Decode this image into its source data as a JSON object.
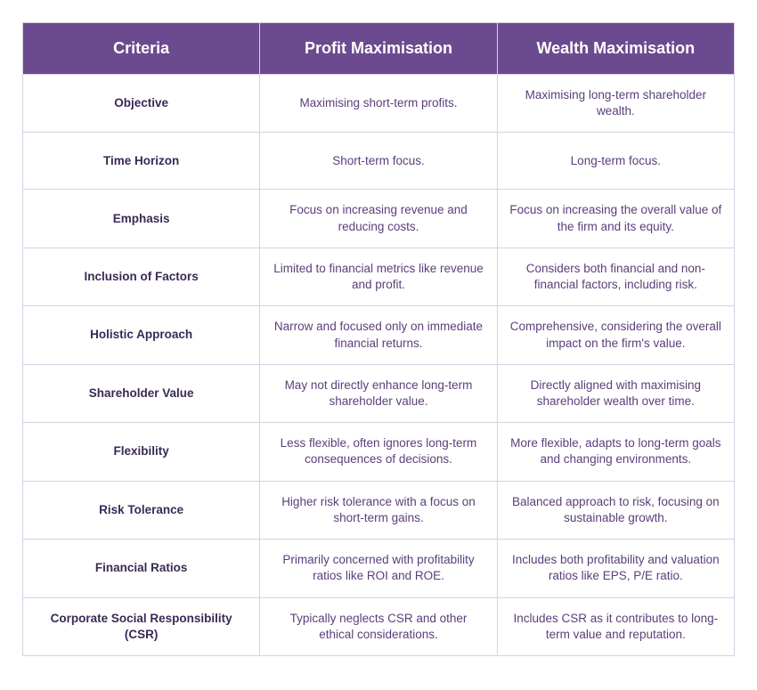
{
  "table": {
    "type": "table",
    "header_bg": "#6b4a8f",
    "header_text_color": "#ffffff",
    "cell_text_color": "#5a3f7a",
    "criteria_text_color": "#3a2a55",
    "border_color": "#d9cfe3",
    "header_fontsize": 18,
    "cell_fontsize": 13.5,
    "columns": [
      "Criteria",
      "Profit Maximisation",
      "Wealth Maximisation"
    ],
    "rows": [
      {
        "criteria": "Objective",
        "profit": "Maximising short-term profits.",
        "wealth": "Maximising long-term shareholder wealth."
      },
      {
        "criteria": "Time Horizon",
        "profit": "Short-term focus.",
        "wealth": "Long-term focus."
      },
      {
        "criteria": "Emphasis",
        "profit": "Focus on increasing revenue and reducing costs.",
        "wealth": "Focus on increasing the overall value of the firm and its equity."
      },
      {
        "criteria": "Inclusion of Factors",
        "profit": "Limited to financial metrics like revenue and profit.",
        "wealth": "Considers both financial and non-financial factors, including risk."
      },
      {
        "criteria": "Holistic Approach",
        "profit": "Narrow and focused only on immediate financial returns.",
        "wealth": "Comprehensive, considering the overall impact on the firm's value."
      },
      {
        "criteria": "Shareholder Value",
        "profit": "May not directly enhance long-term shareholder value.",
        "wealth": "Directly aligned with maximising shareholder wealth over time."
      },
      {
        "criteria": "Flexibility",
        "profit": "Less flexible, often ignores long-term consequences of decisions.",
        "wealth": "More flexible, adapts to long-term goals and changing environments."
      },
      {
        "criteria": "Risk Tolerance",
        "profit": "Higher risk tolerance with a focus on short-term gains.",
        "wealth": "Balanced approach to risk, focusing on sustainable growth."
      },
      {
        "criteria": "Financial Ratios",
        "profit": "Primarily concerned with profitability ratios like ROI and ROE.",
        "wealth": "Includes both profitability and valuation ratios like EPS, P/E ratio."
      },
      {
        "criteria": "Corporate Social Responsibility (CSR)",
        "profit": "Typically neglects CSR and other ethical considerations.",
        "wealth": "Includes CSR as it contributes to long-term value and reputation."
      }
    ]
  }
}
